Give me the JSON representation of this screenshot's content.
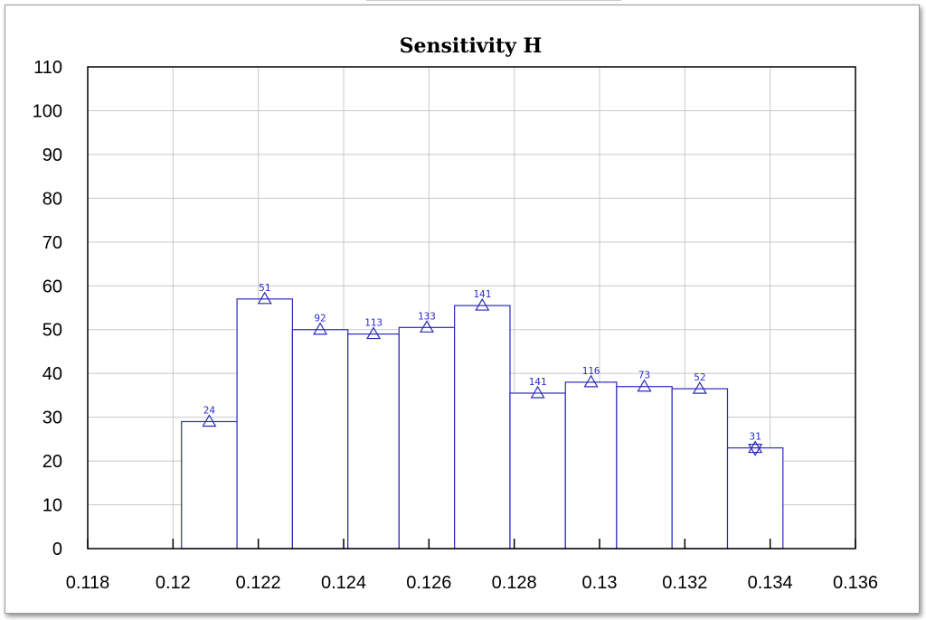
{
  "chart_data": {
    "type": "bar",
    "title": "Sensitivity H",
    "xlabel": "",
    "ylabel": "",
    "xlim": [
      0.118,
      0.136
    ],
    "ylim": [
      0,
      110
    ],
    "x_ticks": [
      "0.118",
      "0.12",
      "0.122",
      "0.124",
      "0.126",
      "0.128",
      "0.13",
      "0.132",
      "0.134",
      "0.136"
    ],
    "y_ticks": [
      "0",
      "10",
      "20",
      "30",
      "40",
      "50",
      "60",
      "70",
      "80",
      "90",
      "100",
      "110"
    ],
    "grid": true,
    "bars": [
      {
        "x0": 0.1202,
        "x1": 0.1215,
        "value": 29,
        "label": "24"
      },
      {
        "x0": 0.1215,
        "x1": 0.1228,
        "value": 57,
        "label": "51"
      },
      {
        "x0": 0.1228,
        "x1": 0.1241,
        "value": 50,
        "label": "92"
      },
      {
        "x0": 0.1241,
        "x1": 0.1253,
        "value": 49,
        "label": "113"
      },
      {
        "x0": 0.1253,
        "x1": 0.1266,
        "value": 50.5,
        "label": "133"
      },
      {
        "x0": 0.1266,
        "x1": 0.1279,
        "value": 55.5,
        "label": "141"
      },
      {
        "x0": 0.1279,
        "x1": 0.1292,
        "value": 35.5,
        "label": "141"
      },
      {
        "x0": 0.1292,
        "x1": 0.1304,
        "value": 38,
        "label": "116"
      },
      {
        "x0": 0.1304,
        "x1": 0.1317,
        "value": 37,
        "label": "73"
      },
      {
        "x0": 0.1317,
        "x1": 0.133,
        "value": 36.5,
        "label": "52"
      },
      {
        "x0": 0.133,
        "x1": 0.1343,
        "value": 23,
        "label": "31"
      }
    ],
    "colors": {
      "bar_outline": "#2a2ab8",
      "grid": "#c8c8c8",
      "axis": "#000000",
      "marker": "#2a2ab8",
      "label": "#2b2bd6"
    }
  }
}
